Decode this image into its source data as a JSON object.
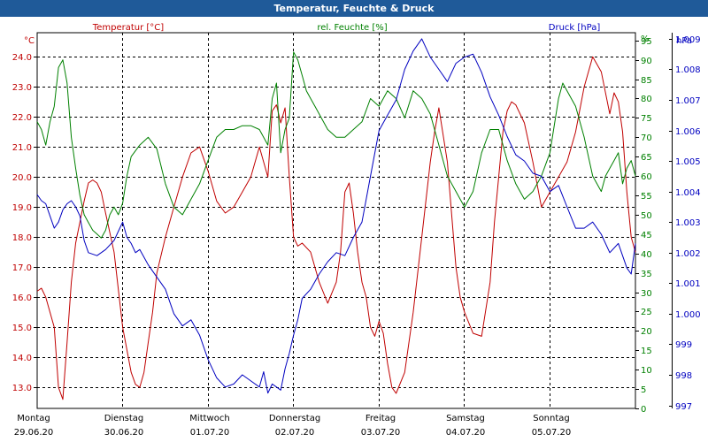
{
  "chart_data": {
    "type": "line",
    "title": "Temperatur, Feuchte & Druck",
    "colors": {
      "temperature": "#c00000",
      "humidity": "#008000",
      "pressure": "#0000c0",
      "title_bar": "#1f5a99",
      "grid": "#000000"
    },
    "axes": {
      "temperature": {
        "unit": "°C",
        "label": "Temperatur [°C]",
        "range": [
          12.3,
          24.8
        ],
        "ticks": [
          "13.0",
          "14.0",
          "15.0",
          "16.0",
          "17.0",
          "18.0",
          "19.0",
          "20.0",
          "21.0",
          "22.0",
          "23.0",
          "24.0"
        ]
      },
      "humidity": {
        "unit": "%",
        "label": "rel. Feuchte [%]",
        "range": [
          0,
          97
        ],
        "ticks": [
          "0",
          "5",
          "10",
          "15",
          "20",
          "25",
          "30",
          "35",
          "40",
          "45",
          "50",
          "55",
          "60",
          "65",
          "70",
          "75",
          "80",
          "85",
          "90",
          "95"
        ]
      },
      "pressure": {
        "unit": "hPa",
        "label": "Druck [hPa]",
        "range": [
          996.9,
          1009.2
        ],
        "ticks": [
          "997",
          "998",
          "999",
          "1.000",
          "1.001",
          "1.002",
          "1.003",
          "1.004",
          "1.005",
          "1.006",
          "1.007",
          "1.008",
          "1.009"
        ]
      }
    },
    "days": [
      {
        "name": "Montag",
        "date": "29.06.20"
      },
      {
        "name": "Dienstag",
        "date": "30.06.20"
      },
      {
        "name": "Mittwoch",
        "date": "01.07.20"
      },
      {
        "name": "Donnerstag",
        "date": "02.07.20"
      },
      {
        "name": "Freitag",
        "date": "03.07.20"
      },
      {
        "name": "Samstag",
        "date": "04.07.20"
      },
      {
        "name": "Sonntag",
        "date": "05.07.20"
      }
    ],
    "x_range": [
      0,
      7
    ],
    "grid": true,
    "series": [
      {
        "name": "Temperatur",
        "key": "temperature",
        "x": [
          0,
          0.05,
          0.1,
          0.15,
          0.2,
          0.25,
          0.3,
          0.35,
          0.4,
          0.45,
          0.5,
          0.55,
          0.6,
          0.65,
          0.7,
          0.75,
          0.8,
          0.9,
          1.0,
          1.1,
          1.15,
          1.2,
          1.25,
          1.3,
          1.35,
          1.4,
          1.5,
          1.6,
          1.7,
          1.8,
          1.9,
          2.0,
          2.1,
          2.2,
          2.3,
          2.4,
          2.5,
          2.6,
          2.7,
          2.75,
          2.8,
          2.85,
          2.9,
          2.95,
          3.0,
          3.05,
          3.1,
          3.2,
          3.3,
          3.4,
          3.5,
          3.55,
          3.6,
          3.65,
          3.7,
          3.75,
          3.8,
          3.85,
          3.9,
          3.95,
          4.0,
          4.05,
          4.1,
          4.15,
          4.2,
          4.3,
          4.4,
          4.5,
          4.6,
          4.65,
          4.7,
          4.8,
          4.9,
          4.95,
          5.0,
          5.1,
          5.2,
          5.3,
          5.35,
          5.4,
          5.45,
          5.5,
          5.55,
          5.6,
          5.7,
          5.8,
          5.9,
          6.0,
          6.1,
          6.2,
          6.3,
          6.4,
          6.5,
          6.6,
          6.7,
          6.75,
          6.8,
          6.85,
          6.9,
          6.95,
          7.0
        ],
        "values": [
          16.2,
          16.3,
          16.0,
          15.5,
          15.0,
          13.0,
          12.6,
          14.5,
          16.5,
          17.8,
          18.5,
          19.2,
          19.8,
          19.9,
          19.8,
          19.5,
          18.8,
          17.5,
          15.0,
          13.5,
          13.1,
          13.0,
          13.5,
          14.5,
          15.5,
          16.8,
          18.0,
          19.0,
          20.0,
          20.8,
          21.0,
          20.2,
          19.2,
          18.8,
          19.0,
          19.5,
          20.0,
          21.0,
          20.0,
          22.2,
          22.4,
          21.8,
          22.3,
          20.0,
          18.0,
          17.7,
          17.8,
          17.5,
          16.5,
          15.8,
          16.5,
          17.5,
          19.5,
          19.8,
          18.8,
          17.5,
          16.5,
          16.0,
          15.0,
          14.7,
          15.2,
          14.8,
          13.8,
          13.0,
          12.8,
          13.5,
          15.5,
          18.0,
          20.5,
          21.5,
          22.3,
          20.5,
          17.0,
          16.0,
          15.5,
          14.8,
          14.7,
          16.5,
          18.5,
          20.0,
          21.5,
          22.2,
          22.5,
          22.4,
          21.8,
          20.5,
          19.0,
          19.5,
          20.0,
          20.5,
          21.5,
          23.0,
          24.0,
          23.5,
          22.1,
          22.8,
          22.5,
          21.5,
          19.5,
          18.0,
          17.5
        ]
      },
      {
        "name": "rel. Feuchte",
        "key": "humidity",
        "x": [
          0,
          0.05,
          0.1,
          0.15,
          0.2,
          0.25,
          0.3,
          0.35,
          0.4,
          0.45,
          0.5,
          0.55,
          0.6,
          0.65,
          0.7,
          0.75,
          0.8,
          0.85,
          0.9,
          0.95,
          1.0,
          1.05,
          1.1,
          1.2,
          1.3,
          1.4,
          1.5,
          1.6,
          1.7,
          1.8,
          1.9,
          2.0,
          2.1,
          2.2,
          2.3,
          2.4,
          2.5,
          2.6,
          2.7,
          2.75,
          2.8,
          2.85,
          2.9,
          2.95,
          3.0,
          3.05,
          3.1,
          3.15,
          3.2,
          3.25,
          3.3,
          3.4,
          3.5,
          3.6,
          3.7,
          3.8,
          3.9,
          4.0,
          4.1,
          4.2,
          4.3,
          4.4,
          4.5,
          4.6,
          4.7,
          4.8,
          4.9,
          5.0,
          5.1,
          5.2,
          5.3,
          5.4,
          5.5,
          5.6,
          5.7,
          5.8,
          5.9,
          6.0,
          6.1,
          6.15,
          6.2,
          6.3,
          6.4,
          6.5,
          6.6,
          6.65,
          6.7,
          6.75,
          6.8,
          6.85,
          6.9,
          6.95,
          7.0
        ],
        "values": [
          74,
          72,
          68,
          74,
          78,
          88,
          90,
          84,
          70,
          62,
          55,
          50,
          48,
          46,
          45,
          44,
          46,
          50,
          52,
          50,
          53,
          60,
          65,
          68,
          70,
          67,
          58,
          52,
          50,
          54,
          58,
          64,
          70,
          72,
          72,
          73,
          73,
          72,
          68,
          80,
          84,
          66,
          72,
          75,
          92,
          90,
          86,
          82,
          80,
          78,
          76,
          72,
          70,
          70,
          72,
          74,
          80,
          78,
          82,
          80,
          75,
          82,
          80,
          76,
          68,
          60,
          56,
          52,
          56,
          66,
          72,
          72,
          64,
          58,
          54,
          56,
          60,
          66,
          80,
          84,
          82,
          78,
          70,
          60,
          56,
          60,
          62,
          64,
          66,
          58,
          62,
          64,
          60
        ]
      },
      {
        "name": "Druck",
        "key": "pressure",
        "x": [
          0,
          0.05,
          0.1,
          0.15,
          0.2,
          0.25,
          0.3,
          0.35,
          0.4,
          0.45,
          0.5,
          0.55,
          0.6,
          0.7,
          0.8,
          0.9,
          1.0,
          1.05,
          1.1,
          1.15,
          1.2,
          1.3,
          1.4,
          1.5,
          1.6,
          1.7,
          1.8,
          1.9,
          2.0,
          2.1,
          2.2,
          2.3,
          2.4,
          2.5,
          2.6,
          2.65,
          2.7,
          2.75,
          2.8,
          2.85,
          2.9,
          2.95,
          3.0,
          3.05,
          3.1,
          3.2,
          3.3,
          3.4,
          3.5,
          3.6,
          3.7,
          3.8,
          3.9,
          4.0,
          4.1,
          4.2,
          4.3,
          4.4,
          4.5,
          4.6,
          4.7,
          4.8,
          4.9,
          5.0,
          5.1,
          5.2,
          5.3,
          5.4,
          5.5,
          5.6,
          5.7,
          5.8,
          5.9,
          6.0,
          6.1,
          6.2,
          6.3,
          6.4,
          6.5,
          6.6,
          6.7,
          6.8,
          6.9,
          6.95,
          7.0
        ],
        "values": [
          1003.9,
          1003.7,
          1003.6,
          1003.2,
          1002.8,
          1003.0,
          1003.4,
          1003.6,
          1003.7,
          1003.5,
          1003.2,
          1002.4,
          1002.0,
          1001.9,
          1002.1,
          1002.4,
          1003.0,
          1002.5,
          1002.3,
          1002.0,
          1002.1,
          1001.6,
          1001.2,
          1000.8,
          1000.0,
          999.6,
          999.8,
          999.3,
          998.5,
          997.9,
          997.6,
          997.7,
          998.0,
          997.8,
          997.6,
          998.1,
          997.4,
          997.7,
          997.6,
          997.5,
          998.2,
          998.7,
          999.3,
          999.8,
          1000.5,
          1000.8,
          1001.3,
          1001.7,
          1002.0,
          1001.9,
          1002.5,
          1003.0,
          1004.5,
          1006.0,
          1006.5,
          1007.0,
          1008.0,
          1008.6,
          1009.0,
          1008.4,
          1008.0,
          1007.6,
          1008.2,
          1008.4,
          1008.5,
          1007.9,
          1007.1,
          1006.5,
          1005.8,
          1005.2,
          1005.0,
          1004.6,
          1004.5,
          1004.0,
          1004.2,
          1003.5,
          1002.8,
          1002.8,
          1003.0,
          1002.6,
          1002.0,
          1002.3,
          1001.5,
          1001.3,
          1002.3
        ]
      }
    ]
  }
}
